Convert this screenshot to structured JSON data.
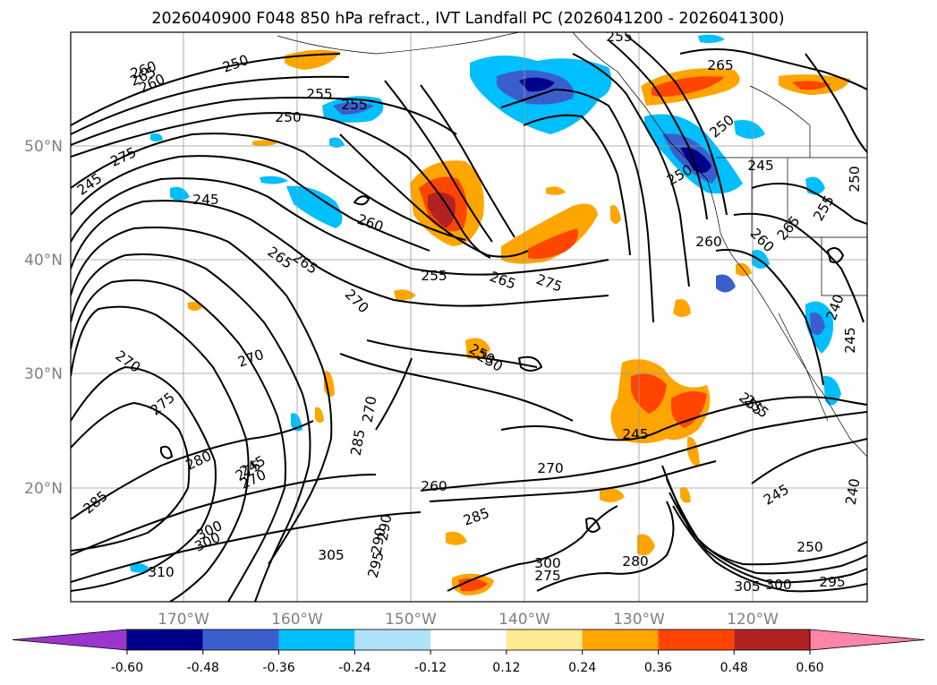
{
  "title": "2026040900 F048 850 hPa refract., IVT Landfall PC (2026041200 - 2026041300)",
  "map": {
    "lat_labels": [
      "50°N",
      "40°N",
      "30°N",
      "20°N"
    ],
    "lon_labels": [
      "170°W",
      "160°W",
      "150°W",
      "140°W",
      "130°W",
      "120°W"
    ],
    "contour_labels": [
      "255",
      "265",
      "250",
      "260",
      "255",
      "250",
      "255",
      "260",
      "265",
      "275",
      "245",
      "260",
      "245",
      "255",
      "250",
      "245",
      "250",
      "250",
      "265",
      "260",
      "255",
      "265",
      "275",
      "260",
      "270",
      "270",
      "240",
      "245",
      "275",
      "280",
      "270",
      "270",
      "285",
      "250",
      "255",
      "245",
      "285",
      "260",
      "270",
      "245",
      "300",
      "290",
      "295",
      "285",
      "310",
      "305",
      "300",
      "275",
      "280",
      "305",
      "300",
      "300",
      "295",
      "250",
      "240",
      "265",
      "270",
      "245",
      "250",
      "255",
      "265",
      "275",
      "290"
    ]
  },
  "colorbar": {
    "ticks": [
      "-0.60",
      "-0.48",
      "-0.36",
      "-0.24",
      "-0.12",
      "0.12",
      "0.24",
      "0.36",
      "0.48",
      "0.60"
    ],
    "colors": [
      "#9b35cf",
      "#00008b",
      "#3a5fcd",
      "#00bfff",
      "#aee3fa",
      "#ffffff",
      "#ffe992",
      "#ffa500",
      "#ff4500",
      "#b22222",
      "#ff85a8"
    ]
  }
}
